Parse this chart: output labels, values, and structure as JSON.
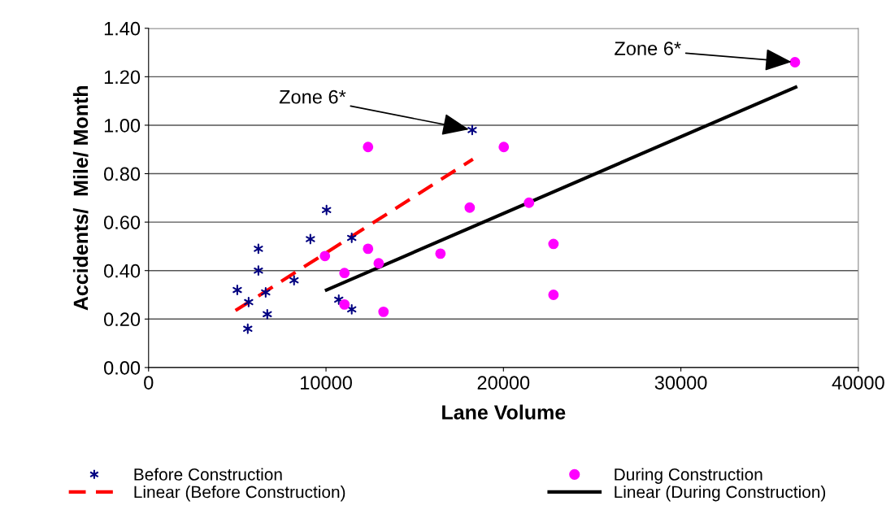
{
  "chart_data": {
    "type": "scatter",
    "xlabel": "Lane Volume",
    "ylabel": "Accidents/  Mile/ Month",
    "xlim": [
      0,
      40000
    ],
    "xticks": [
      0,
      10000,
      20000,
      30000,
      40000
    ],
    "ylim": [
      0,
      1.4
    ],
    "yticks": [
      {
        "value": 0,
        "label": "0.00"
      },
      {
        "value": 0.2,
        "label": "0.20"
      },
      {
        "value": 0.4,
        "label": "0.40"
      },
      {
        "value": 0.6,
        "label": "0.60"
      },
      {
        "value": 0.8,
        "label": "0.80"
      },
      {
        "value": 1.0,
        "label": "1.00"
      },
      {
        "value": 1.2,
        "label": "1.20"
      },
      {
        "value": 1.4,
        "label": "1.40"
      }
    ],
    "grid": "y",
    "legend": "bottom",
    "series": [
      {
        "name": "Before Construction",
        "type": "scatter",
        "marker": "cross",
        "color": "#000080",
        "x": [
          5000,
          5640,
          5590,
          6190,
          6190,
          6600,
          6690,
          8200,
          9120,
          10030,
          10720,
          11450,
          11450,
          18240
        ],
        "values": [
          0.32,
          0.27,
          0.16,
          0.49,
          0.4,
          0.31,
          0.22,
          0.36,
          0.53,
          0.65,
          0.28,
          0.535,
          0.24,
          0.98
        ]
      },
      {
        "name": "Linear (Before Construction)",
        "type": "line",
        "line_style": "dashed",
        "color": "#ff0000",
        "x": [
          4900,
          18280
        ],
        "values": [
          0.235,
          0.86
        ]
      },
      {
        "name": "During Construction",
        "type": "scatter",
        "marker": "circle",
        "color": "#ff00ff",
        "x": [
          12370,
          9940,
          12370,
          11040,
          12970,
          11040,
          13240,
          16450,
          18100,
          20020,
          21440,
          22820,
          22820,
          36430
        ],
        "values": [
          0.91,
          0.46,
          0.49,
          0.39,
          0.43,
          0.26,
          0.23,
          0.47,
          0.66,
          0.91,
          0.68,
          0.51,
          0.3,
          1.26
        ]
      },
      {
        "name": "Linear (During Construction)",
        "type": "line",
        "line_style": "solid",
        "color": "#000000",
        "x": [
          10030,
          36470
        ],
        "values": [
          0.32,
          1.157
        ]
      }
    ],
    "annotations": [
      {
        "text": "Zone 6*",
        "x": 18240,
        "y": 0.98
      },
      {
        "text": "Zone 6*",
        "x": 36430,
        "y": 1.26
      }
    ]
  }
}
